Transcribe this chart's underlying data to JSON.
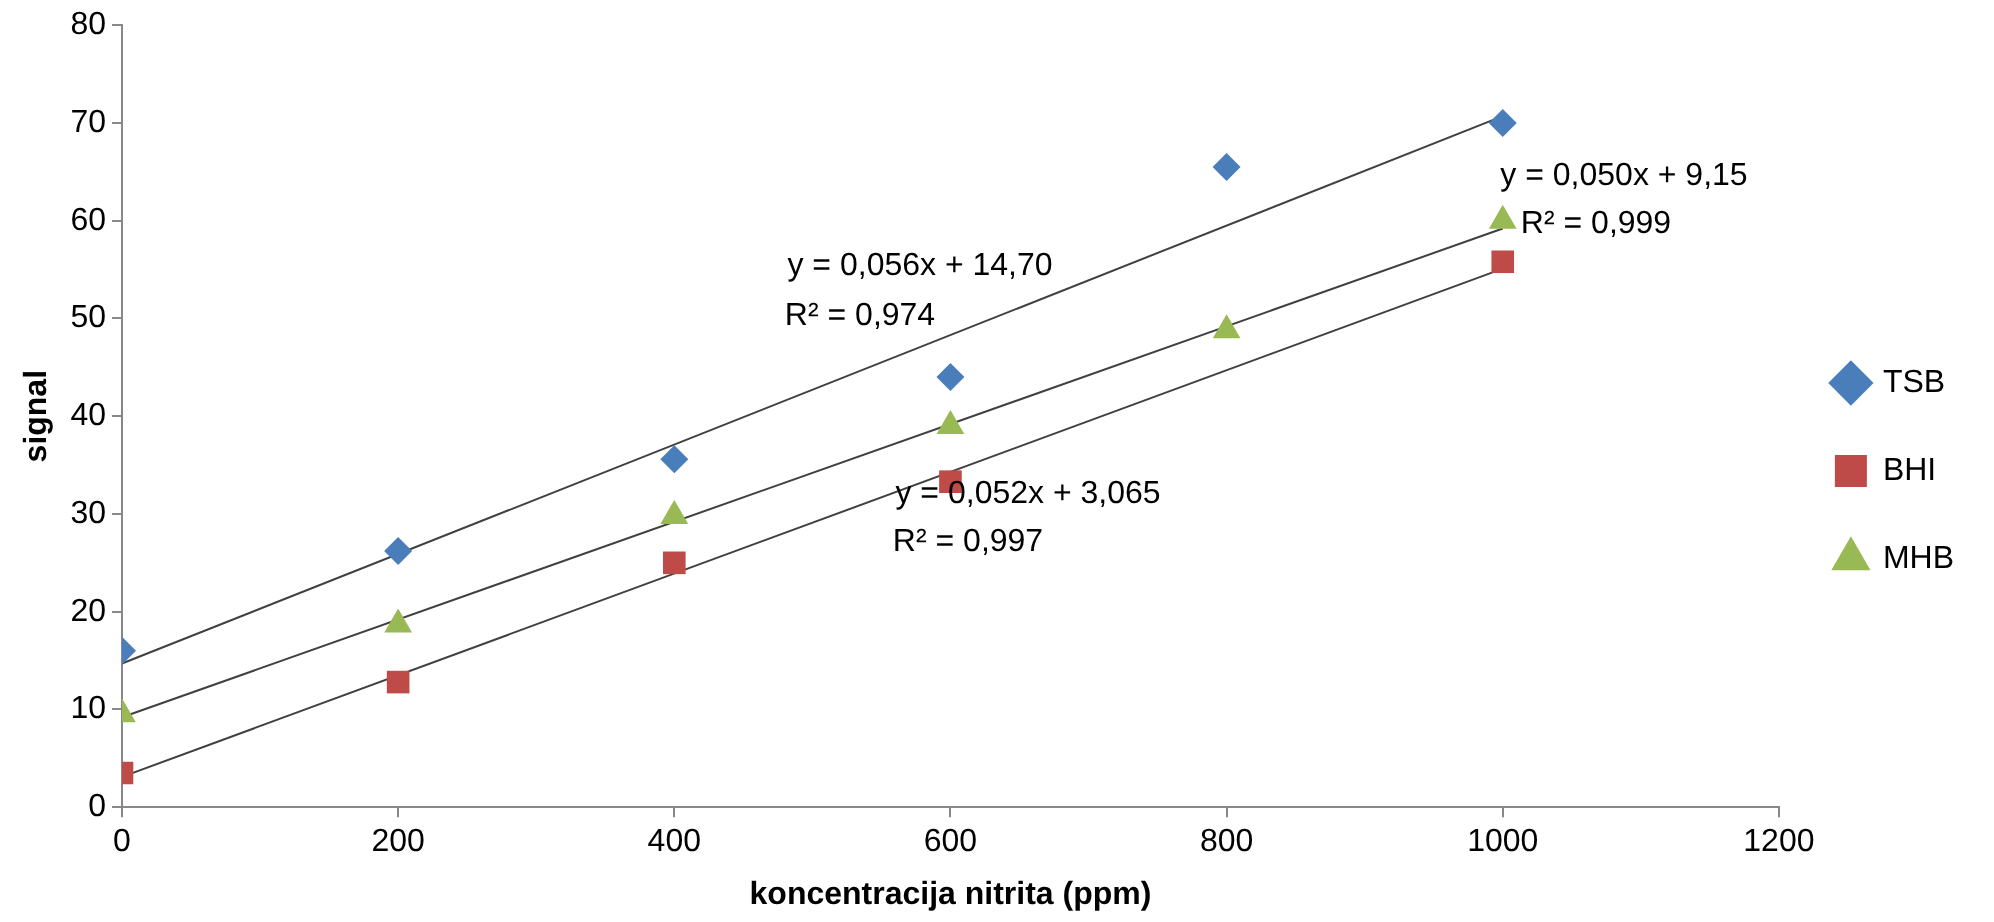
{
  "chart_data": {
    "type": "scatter",
    "xlabel": "koncentracija nitrita (ppm)",
    "ylabel": "signal",
    "xlim": [
      0,
      1200
    ],
    "xticks": [
      0,
      200,
      400,
      600,
      800,
      1000,
      1200
    ],
    "ylim": [
      0,
      80
    ],
    "yticks": [
      0,
      10,
      20,
      30,
      40,
      50,
      60,
      70,
      80
    ],
    "grid": false,
    "legend": "right",
    "series": [
      {
        "name": "TSB",
        "color": "#4a7ebb",
        "marker": "diamond",
        "x": [
          0,
          200,
          400,
          600,
          800,
          1000
        ],
        "values": [
          16.0,
          26.2,
          35.6,
          44.0,
          65.5,
          70.0
        ]
      },
      {
        "name": "BHI",
        "color": "#be4b48",
        "marker": "square",
        "x": [
          0,
          200,
          400,
          600,
          1000
        ],
        "values": [
          3.5,
          12.8,
          25.0,
          33.3,
          55.8
        ]
      },
      {
        "name": "MHB",
        "color": "#98b954",
        "marker": "triangle",
        "x": [
          0,
          200,
          400,
          600,
          800,
          1000
        ],
        "values": [
          9.5,
          18.7,
          29.8,
          39.0,
          48.8,
          60.0
        ]
      },
      {
        "type": "line",
        "color": "#404040",
        "marker": "none",
        "x": [
          0,
          1000
        ],
        "values": [
          14.7,
          70.7
        ]
      },
      {
        "type": "line",
        "color": "#404040",
        "marker": "none",
        "x": [
          0,
          1000
        ],
        "values": [
          3.1,
          55.1
        ]
      },
      {
        "type": "line",
        "color": "#404040",
        "marker": "none",
        "x": [
          0,
          1000
        ],
        "values": [
          9.2,
          59.2
        ]
      }
    ],
    "annotations": [
      "y = 0,056x + 14,70",
      "R² = 0,974",
      "y = 0,052x + 3,065",
      "R² = 0,997",
      "y = 0,050x + 9,15",
      "R² = 0,999"
    ]
  }
}
